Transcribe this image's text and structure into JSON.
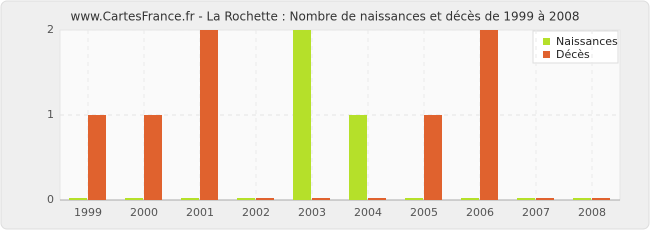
{
  "chart_data": {
    "type": "bar",
    "title": "www.CartesFrance.fr - La Rochette : Nombre de naissances et décès de 1999 à 2008",
    "categories": [
      "1999",
      "2000",
      "2001",
      "2002",
      "2003",
      "2004",
      "2005",
      "2006",
      "2007",
      "2008"
    ],
    "series": [
      {
        "name": "Naissances",
        "color": "#b5e02a",
        "values": [
          0,
          0,
          0,
          0,
          2,
          1,
          0,
          0,
          0,
          0
        ]
      },
      {
        "name": "Décès",
        "color": "#e0622e",
        "values": [
          1,
          1,
          2,
          0,
          0,
          0,
          1,
          2,
          0,
          0
        ]
      }
    ],
    "ylim": [
      0,
      2
    ],
    "yticks": [
      0,
      1,
      2
    ],
    "grid": true,
    "legend": "top-right"
  }
}
